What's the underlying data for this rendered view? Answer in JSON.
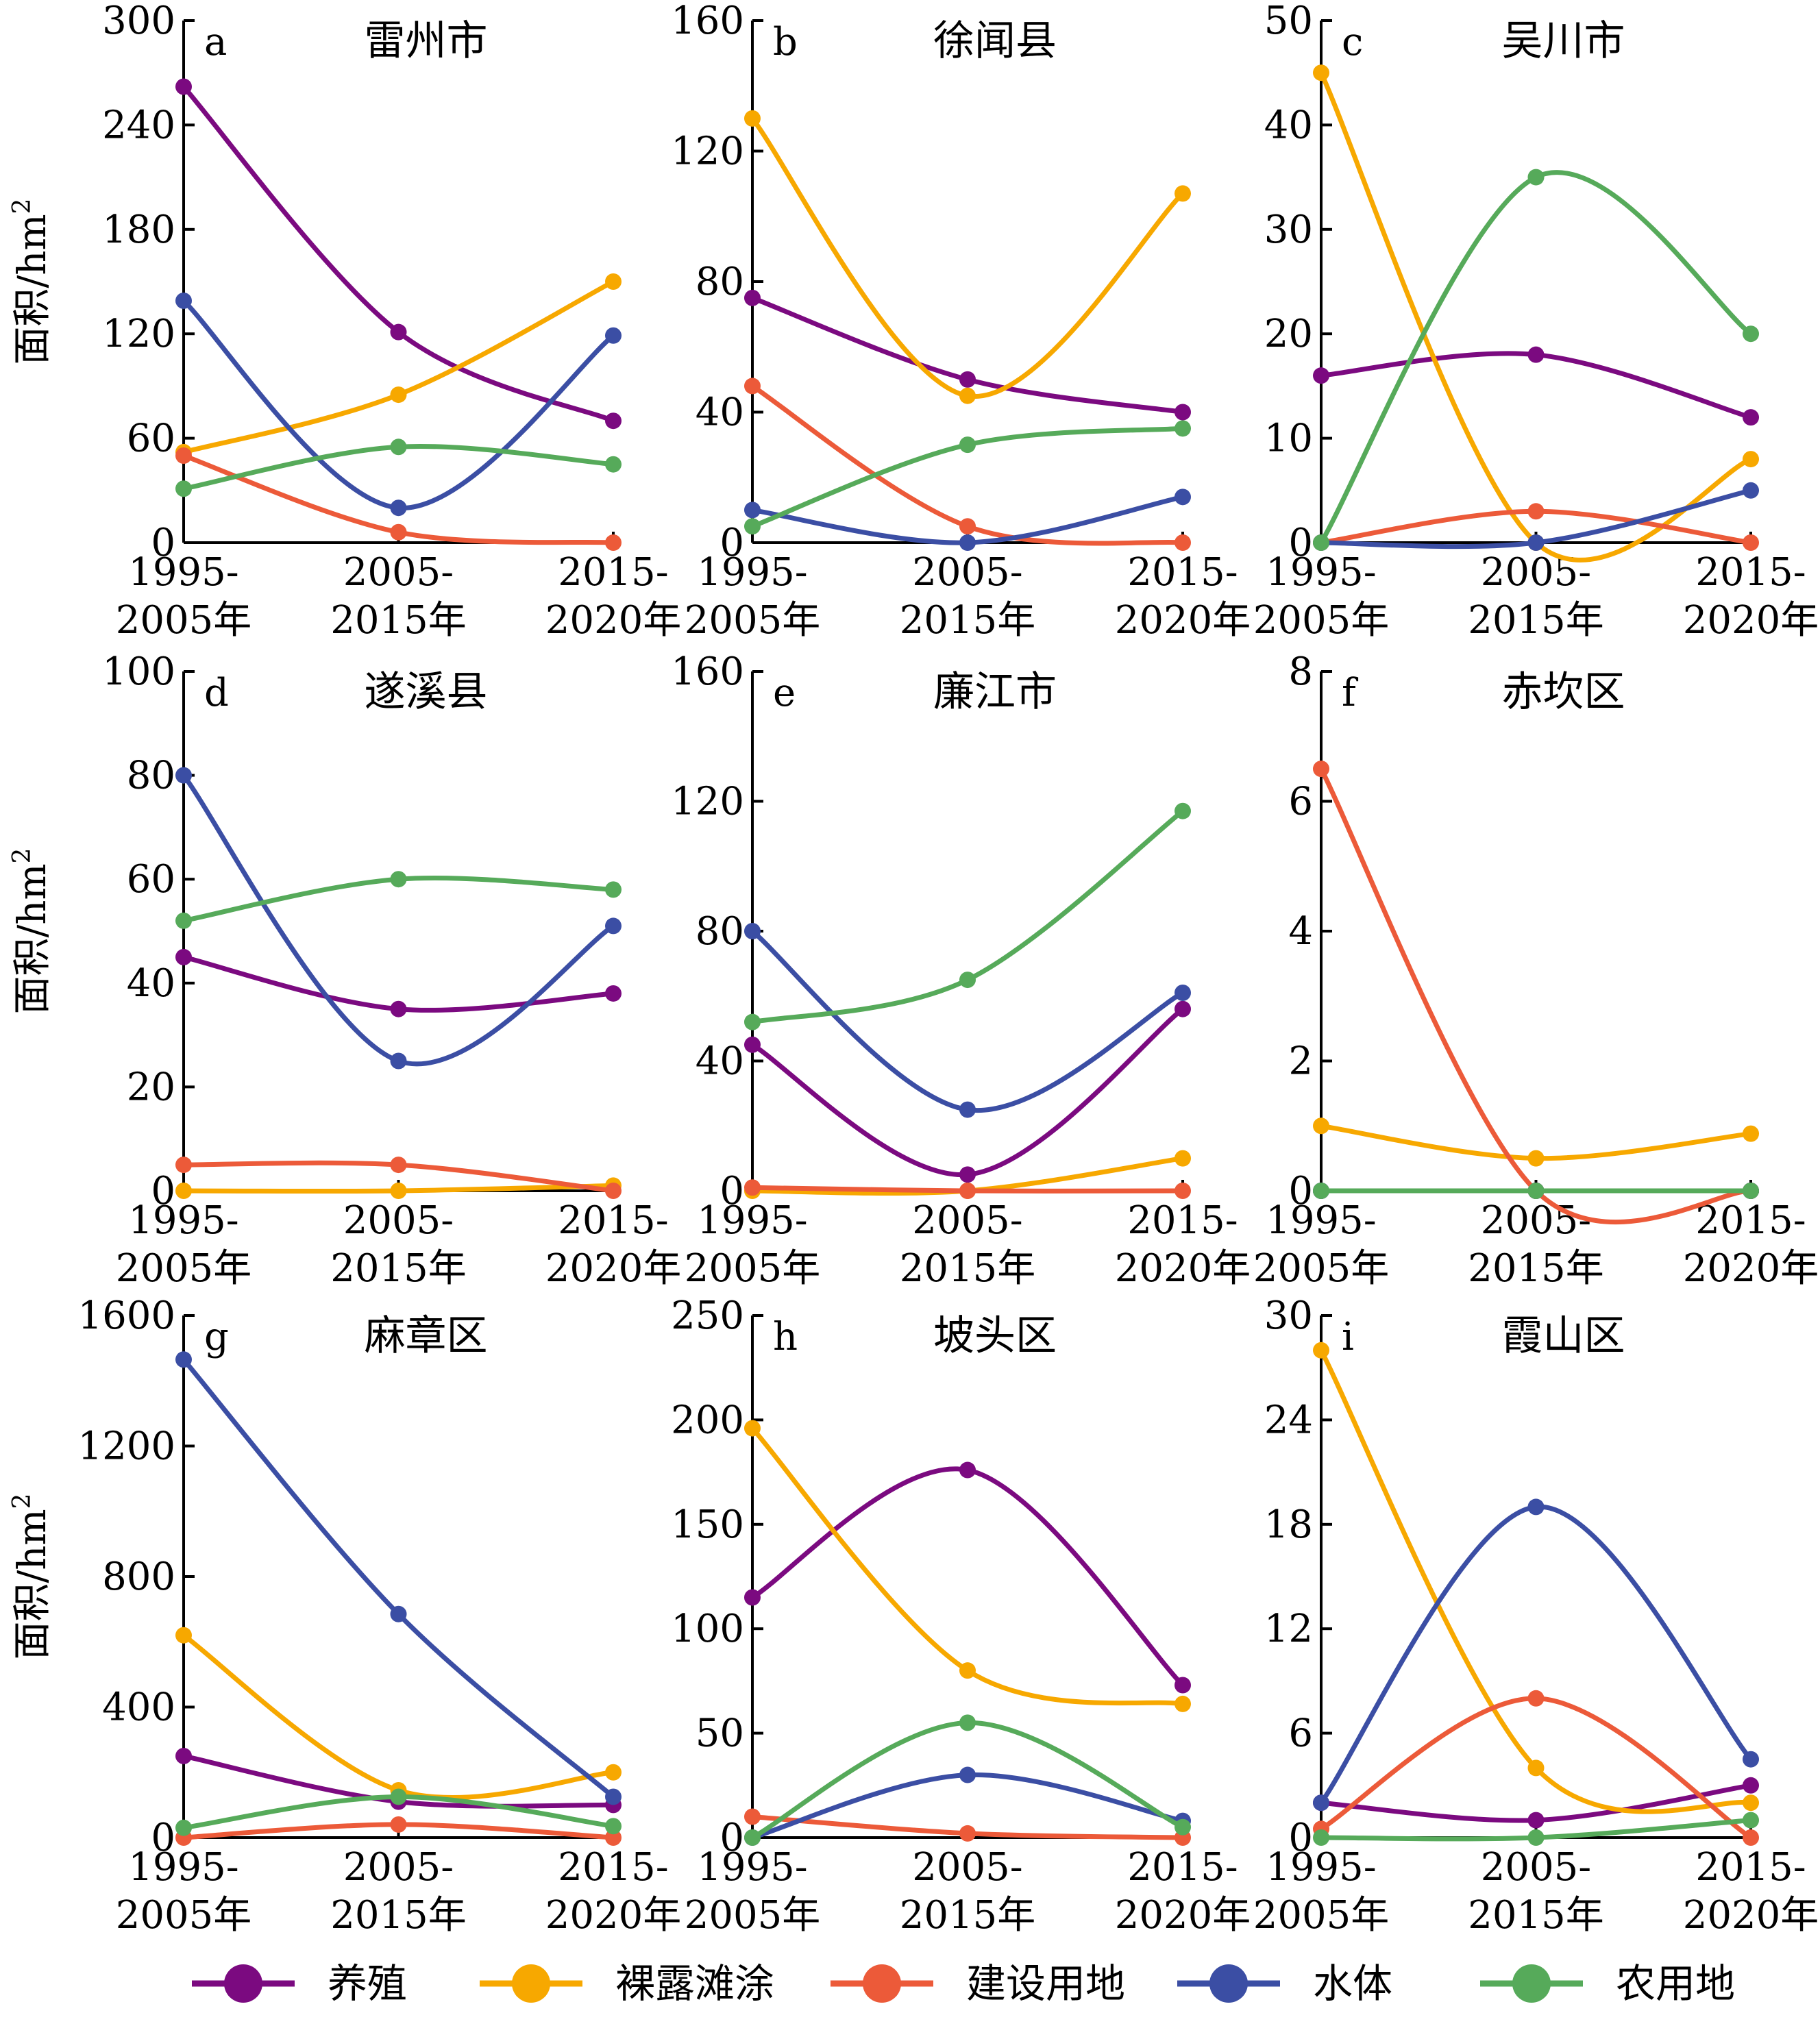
{
  "chart_data": {
    "type": "line",
    "categories": [
      "1995-\n2005年",
      "2005-\n2015年",
      "2015-\n2020年"
    ],
    "ylabel": "面积/hm²",
    "legend": {
      "placement": "bottom",
      "entries": [
        {
          "name": "养殖",
          "color": "#7b0a80"
        },
        {
          "name": "裸露滩涂",
          "color": "#f7a800"
        },
        {
          "name": "建设用地",
          "color": "#ec5a39"
        },
        {
          "name": "水体",
          "color": "#3b4ea4"
        },
        {
          "name": "农用地",
          "color": "#56aa5a"
        }
      ]
    },
    "panels": [
      {
        "letter": "a",
        "title": "雷州市",
        "ylim": [
          0,
          300
        ],
        "yticks": [
          0,
          60,
          120,
          180,
          240,
          300
        ],
        "series": [
          {
            "name": "养殖",
            "values": [
              262,
              121,
              70
            ]
          },
          {
            "name": "裸露滩涂",
            "values": [
              52,
              85,
              150
            ]
          },
          {
            "name": "建设用地",
            "values": [
              50,
              6,
              0
            ]
          },
          {
            "name": "水体",
            "values": [
              139,
              20,
              119
            ]
          },
          {
            "name": "农用地",
            "values": [
              31,
              55,
              45
            ]
          }
        ]
      },
      {
        "letter": "b",
        "title": "徐闻县",
        "ylim": [
          0,
          160
        ],
        "yticks": [
          0,
          40,
          80,
          120,
          160
        ],
        "series": [
          {
            "name": "养殖",
            "values": [
              75,
              50,
              40
            ]
          },
          {
            "name": "裸露滩涂",
            "values": [
              130,
              45,
              107
            ]
          },
          {
            "name": "建设用地",
            "values": [
              48,
              5,
              0
            ]
          },
          {
            "name": "水体",
            "values": [
              10,
              0,
              14
            ]
          },
          {
            "name": "农用地",
            "values": [
              5,
              30,
              35
            ]
          }
        ]
      },
      {
        "letter": "c",
        "title": "吴川市",
        "ylim": [
          0,
          50
        ],
        "yticks": [
          0,
          10,
          20,
          30,
          40,
          50
        ],
        "series": [
          {
            "name": "养殖",
            "values": [
              16,
              18,
              12
            ]
          },
          {
            "name": "裸露滩涂",
            "values": [
              45,
              0,
              8
            ]
          },
          {
            "name": "建设用地",
            "values": [
              0,
              3,
              0
            ]
          },
          {
            "name": "水体",
            "values": [
              0,
              0,
              5
            ]
          },
          {
            "name": "农用地",
            "values": [
              0,
              35,
              20
            ]
          }
        ]
      },
      {
        "letter": "d",
        "title": "遂溪县",
        "ylim": [
          0,
          100
        ],
        "yticks": [
          0,
          20,
          40,
          60,
          80,
          100
        ],
        "series": [
          {
            "name": "养殖",
            "values": [
              45,
              35,
              38
            ]
          },
          {
            "name": "裸露滩涂",
            "values": [
              0,
              0,
              1
            ]
          },
          {
            "name": "建设用地",
            "values": [
              5,
              5,
              0
            ]
          },
          {
            "name": "水体",
            "values": [
              80,
              25,
              51
            ]
          },
          {
            "name": "农用地",
            "values": [
              52,
              60,
              58
            ]
          }
        ]
      },
      {
        "letter": "e",
        "title": "廉江市",
        "ylim": [
          0,
          160
        ],
        "yticks": [
          0,
          40,
          80,
          120,
          160
        ],
        "series": [
          {
            "name": "养殖",
            "values": [
              45,
              5,
              56
            ]
          },
          {
            "name": "裸露滩涂",
            "values": [
              0,
              0,
              10
            ]
          },
          {
            "name": "建设用地",
            "values": [
              1,
              0,
              0
            ]
          },
          {
            "name": "水体",
            "values": [
              80,
              25,
              61
            ]
          },
          {
            "name": "农用地",
            "values": [
              52,
              65,
              117
            ]
          }
        ]
      },
      {
        "letter": "f",
        "title": "赤坎区",
        "ylim": [
          0,
          8
        ],
        "yticks": [
          0,
          2,
          4,
          6,
          8
        ],
        "series": [
          {
            "name": "养殖",
            "values": [
              0,
              0,
              0
            ]
          },
          {
            "name": "裸露滩涂",
            "values": [
              1,
              0.5,
              0.88
            ]
          },
          {
            "name": "建设用地",
            "values": [
              6.5,
              0,
              0
            ]
          },
          {
            "name": "水体",
            "values": [
              0,
              0,
              0
            ]
          },
          {
            "name": "农用地",
            "values": [
              0,
              0,
              0
            ]
          }
        ]
      },
      {
        "letter": "g",
        "title": "麻章区",
        "ylim": [
          0,
          1600
        ],
        "yticks": [
          0,
          400,
          800,
          1200,
          1600
        ],
        "series": [
          {
            "name": "养殖",
            "values": [
              250,
              110,
              100
            ]
          },
          {
            "name": "裸露滩涂",
            "values": [
              620,
              145,
              200
            ]
          },
          {
            "name": "建设用地",
            "values": [
              0,
              40,
              0
            ]
          },
          {
            "name": "水体",
            "values": [
              1465,
              685,
              125
            ]
          },
          {
            "name": "农用地",
            "values": [
              30,
              125,
              35
            ]
          }
        ]
      },
      {
        "letter": "h",
        "title": "坡头区",
        "ylim": [
          0,
          250
        ],
        "yticks": [
          0,
          50,
          100,
          150,
          200,
          250
        ],
        "series": [
          {
            "name": "养殖",
            "values": [
              115,
              176,
              73
            ]
          },
          {
            "name": "裸露滩涂",
            "values": [
              196,
              80,
              64
            ]
          },
          {
            "name": "建设用地",
            "values": [
              10,
              2,
              0
            ]
          },
          {
            "name": "水体",
            "values": [
              0,
              30,
              8
            ]
          },
          {
            "name": "农用地",
            "values": [
              0,
              55,
              5
            ]
          }
        ]
      },
      {
        "letter": "i",
        "title": "霞山区",
        "ylim": [
          0,
          30
        ],
        "yticks": [
          0,
          6,
          12,
          18,
          24,
          30
        ],
        "series": [
          {
            "name": "养殖",
            "values": [
              2,
              1,
              3
            ]
          },
          {
            "name": "裸露滩涂",
            "values": [
              28,
              4,
              2
            ]
          },
          {
            "name": "建设用地",
            "values": [
              0.5,
              8,
              0
            ]
          },
          {
            "name": "水体",
            "values": [
              2,
              19,
              4.5
            ]
          },
          {
            "name": "农用地",
            "values": [
              0,
              0,
              1
            ]
          }
        ]
      }
    ]
  }
}
